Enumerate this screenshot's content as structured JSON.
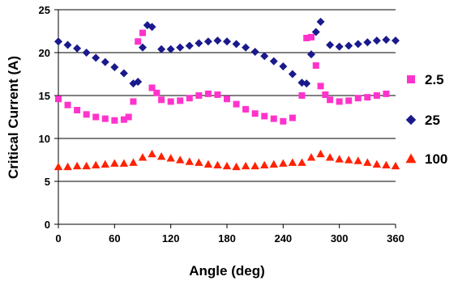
{
  "chart_data": {
    "type": "scatter",
    "xlabel": "Angle (deg)",
    "ylabel": "Critical Current (A)",
    "xlim": [
      0,
      360
    ],
    "ylim": [
      0,
      25
    ],
    "x_ticks": [
      "0",
      "60",
      "120",
      "180",
      "240",
      "300",
      "360"
    ],
    "y_ticks": [
      "0",
      "5",
      "10",
      "15",
      "20",
      "25"
    ],
    "grid": "horizontal",
    "legend_position": "right",
    "series": [
      {
        "name": "2.5",
        "marker": "square",
        "color": "#ff33cc",
        "points": [
          [
            0,
            14.6
          ],
          [
            10,
            13.9
          ],
          [
            20,
            13.3
          ],
          [
            30,
            12.8
          ],
          [
            40,
            12.5
          ],
          [
            50,
            12.3
          ],
          [
            60,
            12.1
          ],
          [
            70,
            12.2
          ],
          [
            75,
            12.5
          ],
          [
            80,
            14.3
          ],
          [
            85,
            21.3
          ],
          [
            90,
            22.3
          ],
          [
            100,
            15.9
          ],
          [
            105,
            15.3
          ],
          [
            110,
            14.5
          ],
          [
            120,
            14.3
          ],
          [
            130,
            14.4
          ],
          [
            140,
            14.7
          ],
          [
            150,
            15.0
          ],
          [
            160,
            15.2
          ],
          [
            170,
            15.1
          ],
          [
            180,
            14.6
          ],
          [
            190,
            14.0
          ],
          [
            200,
            13.4
          ],
          [
            210,
            12.9
          ],
          [
            220,
            12.6
          ],
          [
            230,
            12.3
          ],
          [
            240,
            12.0
          ],
          [
            250,
            12.4
          ],
          [
            260,
            15.0
          ],
          [
            265,
            21.7
          ],
          [
            270,
            21.8
          ],
          [
            275,
            18.5
          ],
          [
            280,
            16.1
          ],
          [
            285,
            15.1
          ],
          [
            290,
            14.5
          ],
          [
            300,
            14.3
          ],
          [
            310,
            14.4
          ],
          [
            320,
            14.7
          ],
          [
            330,
            14.8
          ],
          [
            340,
            15.0
          ],
          [
            350,
            15.2
          ]
        ]
      },
      {
        "name": "25",
        "marker": "diamond",
        "color": "#1a1a8c",
        "points": [
          [
            0,
            21.3
          ],
          [
            10,
            20.9
          ],
          [
            20,
            20.5
          ],
          [
            30,
            20.0
          ],
          [
            40,
            19.4
          ],
          [
            50,
            18.9
          ],
          [
            60,
            18.3
          ],
          [
            70,
            17.6
          ],
          [
            80,
            16.4
          ],
          [
            85,
            16.6
          ],
          [
            90,
            20.6
          ],
          [
            95,
            23.2
          ],
          [
            100,
            23.0
          ],
          [
            110,
            20.4
          ],
          [
            120,
            20.4
          ],
          [
            130,
            20.6
          ],
          [
            140,
            20.8
          ],
          [
            150,
            21.1
          ],
          [
            160,
            21.3
          ],
          [
            170,
            21.4
          ],
          [
            180,
            21.3
          ],
          [
            190,
            21.0
          ],
          [
            200,
            20.6
          ],
          [
            210,
            20.1
          ],
          [
            220,
            19.6
          ],
          [
            230,
            19.0
          ],
          [
            240,
            18.4
          ],
          [
            250,
            17.5
          ],
          [
            260,
            16.5
          ],
          [
            265,
            16.4
          ],
          [
            270,
            19.8
          ],
          [
            275,
            22.4
          ],
          [
            280,
            23.6
          ],
          [
            290,
            20.9
          ],
          [
            300,
            20.7
          ],
          [
            310,
            20.8
          ],
          [
            320,
            21.0
          ],
          [
            330,
            21.2
          ],
          [
            340,
            21.4
          ],
          [
            350,
            21.5
          ],
          [
            360,
            21.4
          ]
        ]
      },
      {
        "name": "100",
        "marker": "triangle",
        "color": "#ff2200",
        "points": [
          [
            0,
            6.7
          ],
          [
            10,
            6.7
          ],
          [
            20,
            6.8
          ],
          [
            30,
            6.8
          ],
          [
            40,
            6.9
          ],
          [
            50,
            7.0
          ],
          [
            60,
            7.1
          ],
          [
            70,
            7.1
          ],
          [
            80,
            7.2
          ],
          [
            90,
            7.8
          ],
          [
            100,
            8.2
          ],
          [
            110,
            7.9
          ],
          [
            120,
            7.7
          ],
          [
            130,
            7.5
          ],
          [
            140,
            7.3
          ],
          [
            150,
            7.2
          ],
          [
            160,
            7.0
          ],
          [
            170,
            6.9
          ],
          [
            180,
            6.8
          ],
          [
            190,
            6.7
          ],
          [
            200,
            6.8
          ],
          [
            210,
            6.8
          ],
          [
            220,
            6.9
          ],
          [
            230,
            7.0
          ],
          [
            240,
            7.1
          ],
          [
            250,
            7.2
          ],
          [
            260,
            7.2
          ],
          [
            270,
            7.8
          ],
          [
            280,
            8.2
          ],
          [
            290,
            7.8
          ],
          [
            300,
            7.6
          ],
          [
            310,
            7.5
          ],
          [
            320,
            7.4
          ],
          [
            330,
            7.2
          ],
          [
            340,
            7.0
          ],
          [
            350,
            6.9
          ],
          [
            360,
            6.8
          ]
        ]
      }
    ]
  }
}
